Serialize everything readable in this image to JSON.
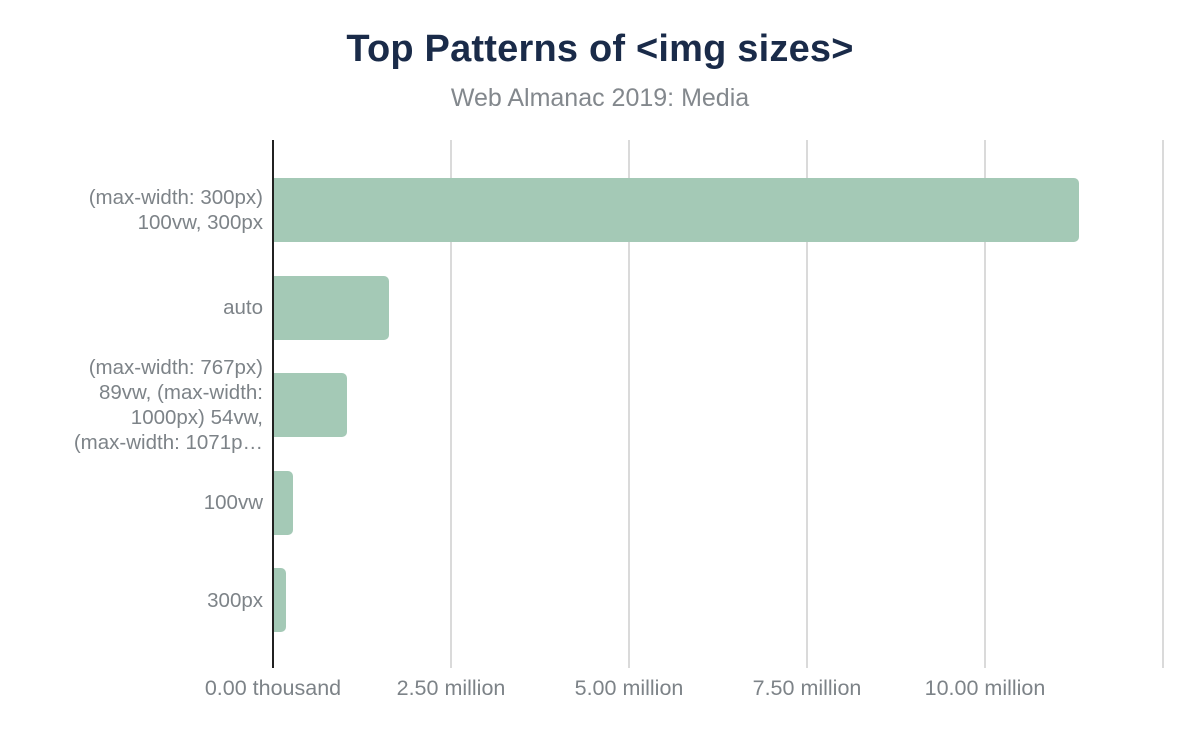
{
  "header": {
    "title": "Top Patterns of <img sizes>",
    "subtitle": "Web Almanac 2019: Media"
  },
  "chart_data": {
    "type": "bar",
    "orientation": "horizontal",
    "title": "Top Patterns of <img sizes>",
    "subtitle": "Web Almanac 2019: Media",
    "categories": [
      "(max-width: 300px)\n100vw, 300px",
      "auto",
      "(max-width: 767px)\n89vw, (max-width:\n1000px) 54vw,\n(max-width: 1071p…",
      "100vw",
      "300px"
    ],
    "values_millions": [
      11.31,
      1.61,
      1.03,
      0.27,
      0.17
    ],
    "x_ticks": [
      {
        "label": "0.00 thousand",
        "value_millions": 0
      },
      {
        "label": "2.50 million",
        "value_millions": 2.5
      },
      {
        "label": "5.00 million",
        "value_millions": 5
      },
      {
        "label": "7.50 million",
        "value_millions": 7.5
      },
      {
        "label": "10.00 million",
        "value_millions": 10
      },
      {
        "label": "",
        "value_millions": 12.5
      }
    ],
    "xlim_millions": [
      0,
      13.0
    ],
    "grid": true,
    "legend": false,
    "bar_color": "#a4c9b6",
    "axis_color": "#212121",
    "gridline_color": "#dadada",
    "title_color": "#1a2b49",
    "subtitle_color": "#83888d",
    "label_color": "#7d8388"
  }
}
